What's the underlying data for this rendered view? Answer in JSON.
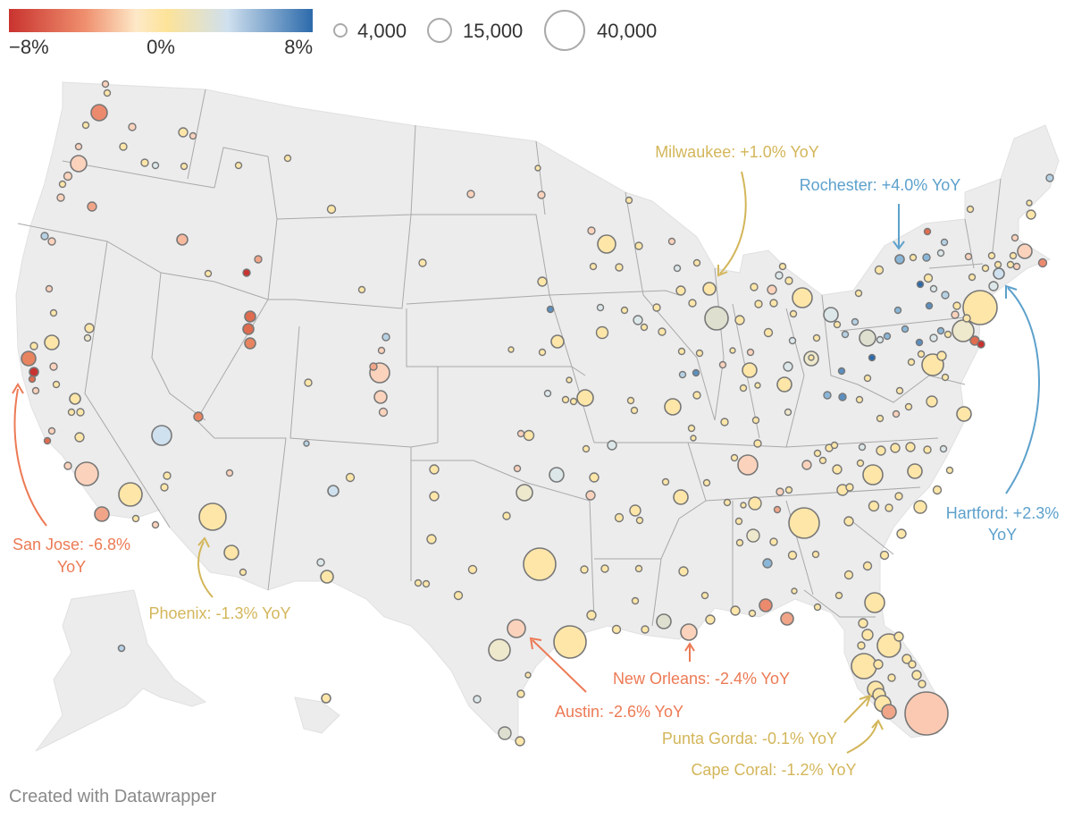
{
  "legend": {
    "color_min_label": "−8%",
    "color_mid_label": "0%",
    "color_max_label": "8%",
    "size_labels": [
      "4,000",
      "15,000",
      "40,000"
    ],
    "gradient": [
      "#c9332f",
      "#ef8f6e",
      "#fde9c8",
      "#fde399",
      "#cfe0ee",
      "#2c6aab"
    ]
  },
  "colors": {
    "land": "#ececec",
    "borders": "#a9a9a9",
    "negative_anno": "#ec7a55",
    "neutral_anno": "#d3b65a",
    "positive_anno": "#5da1cc"
  },
  "annotations": [
    {
      "id": "san-jose",
      "lines": [
        "San Jose: -6.8%",
        "YoY"
      ],
      "tone": "negative"
    },
    {
      "id": "phoenix",
      "lines": [
        "Phoenix: -1.3% YoY"
      ],
      "tone": "neutral"
    },
    {
      "id": "milwaukee",
      "lines": [
        "Milwaukee: +1.0% YoY"
      ],
      "tone": "neutral"
    },
    {
      "id": "rochester",
      "lines": [
        "Rochester: +4.0% YoY"
      ],
      "tone": "positive"
    },
    {
      "id": "hartford",
      "lines": [
        "Hartford: +2.3%",
        "YoY"
      ],
      "tone": "positive"
    },
    {
      "id": "new-orleans",
      "lines": [
        "New Orleans: -2.4% YoY"
      ],
      "tone": "negative"
    },
    {
      "id": "austin",
      "lines": [
        "Austin: -2.6% YoY"
      ],
      "tone": "negative"
    },
    {
      "id": "punta-gorda",
      "lines": [
        "Punta Gorda: -0.1% YoY"
      ],
      "tone": "neutral"
    },
    {
      "id": "cape-coral",
      "lines": [
        "Cape Coral: -1.2% YoY"
      ],
      "tone": "neutral"
    }
  ],
  "credit": "Created with Datawrapper"
}
